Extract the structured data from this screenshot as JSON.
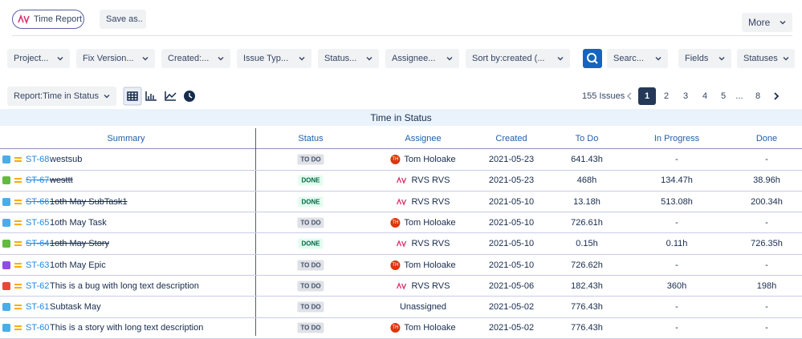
{
  "toolbar": {
    "app_button": "Time Report",
    "save": "Save as..",
    "more": "More"
  },
  "filters": [
    "Project...",
    "Fix Version...",
    "Created:...",
    "Issue Typ...",
    "Status...",
    "Assignee...",
    "Sort by:created (...",
    "Searc...",
    "Fields",
    "Statuses"
  ],
  "report": "Report:Time in Status",
  "issue_count": "155 Issues",
  "pages": [
    "1",
    "2",
    "3",
    "4",
    "5",
    "...",
    "8"
  ],
  "table": {
    "title": "Time in Status",
    "columns": [
      "Summary",
      "Status",
      "Assignee",
      "Created",
      "To Do",
      "In Progress",
      "Done"
    ],
    "rows": [
      {
        "key": "ST-68",
        "summary": "westsub",
        "status": "TO DO",
        "avatar": "TH",
        "assignee": "Tom Holoake",
        "created": "2021-05-23",
        "todo": "641.43h",
        "in_progress": "-",
        "done": "-"
      },
      {
        "key": "ST-67",
        "summary": "westtt",
        "status": "DONE",
        "assignee": "RVS RVS",
        "created": "2021-05-23",
        "todo": "468h",
        "in_progress": "134.47h",
        "done": "38.96h"
      },
      {
        "key": "ST-66",
        "summary": "1oth May SubTask1",
        "status": "DONE",
        "assignee": "RVS RVS",
        "created": "2021-05-10",
        "todo": "13.18h",
        "in_progress": "513.08h",
        "done": "200.34h"
      },
      {
        "key": "ST-65",
        "summary": "1oth May Task",
        "status": "TO DO",
        "avatar": "TH",
        "assignee": "Tom Holoake",
        "created": "2021-05-10",
        "todo": "726.61h",
        "in_progress": "-",
        "done": "-"
      },
      {
        "key": "ST-64",
        "summary": "1oth May Story",
        "status": "DONE",
        "assignee": "RVS RVS",
        "created": "2021-05-10",
        "todo": "0.15h",
        "in_progress": "0.11h",
        "done": "726.35h"
      },
      {
        "key": "ST-63",
        "summary": "1oth May Epic",
        "status": "TO DO",
        "avatar": "TH",
        "assignee": "Tom Holoake",
        "created": "2021-05-10",
        "todo": "726.62h",
        "in_progress": "-",
        "done": "-"
      },
      {
        "key": "ST-62",
        "summary": "This is a bug with long text description",
        "status": "TO DO",
        "assignee": "RVS RVS",
        "created": "2021-05-06",
        "todo": "182.43h",
        "in_progress": "360h",
        "done": "198h"
      },
      {
        "key": "ST-61",
        "summary": "Subtask May",
        "status": "TO DO",
        "assignee": "Unassigned",
        "created": "2021-05-02",
        "todo": "776.43h",
        "in_progress": "-",
        "done": "-"
      },
      {
        "key": "ST-60",
        "summary": "This is a story with long text description",
        "status": "TO DO",
        "avatar": "TH",
        "assignee": "Tom Holoake",
        "created": "2021-05-02",
        "todo": "776.43h",
        "in_progress": "-",
        "done": "-"
      }
    ]
  }
}
